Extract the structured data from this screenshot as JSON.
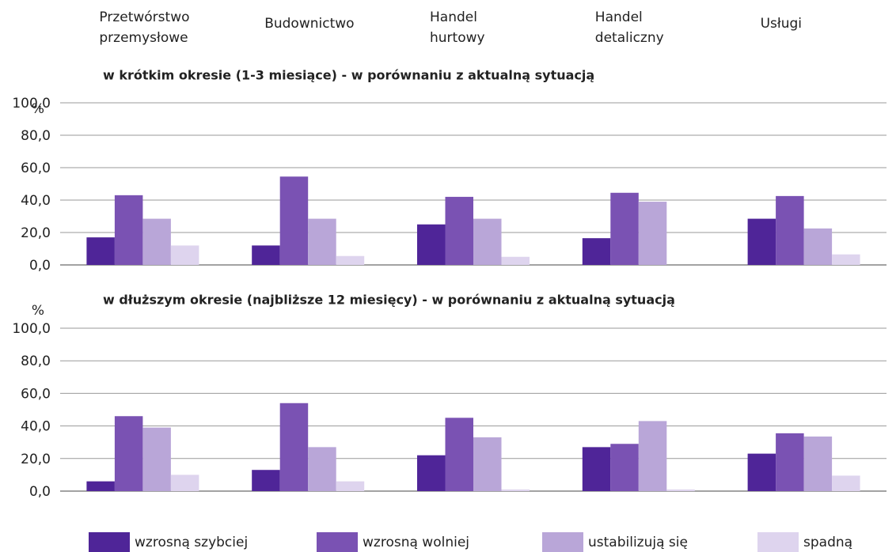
{
  "chart_data": [
    {
      "type": "bar",
      "title": "w krótkim okresie (1-3 miesiące) - w porównaniu z aktualną sytuacją",
      "ylabel": "%",
      "categories": [
        "Przetwórstwo\nprzemysłowe",
        "Budownictwo",
        "Handel\nhurtowy",
        "Handel\ndetaliczny",
        "Usługi"
      ],
      "series": [
        {
          "name": "wzrosną szybciej",
          "color": "#4f2598",
          "values": [
            17,
            12,
            25,
            16.5,
            28.5
          ]
        },
        {
          "name": "wzrosną wolniej",
          "color": "#7a52b3",
          "values": [
            43,
            54.5,
            42,
            44.5,
            42.5
          ]
        },
        {
          "name": "ustabilizują się",
          "color": "#b9a6d8",
          "values": [
            28.5,
            28.5,
            28.5,
            39,
            22.5
          ]
        },
        {
          "name": "spadną",
          "color": "#ded4ee",
          "values": [
            12,
            5.5,
            5,
            0,
            6.5
          ]
        }
      ],
      "ylim": [
        0,
        100
      ],
      "yticks": [
        {
          "value": 0,
          "label": "0,0"
        },
        {
          "value": 20,
          "label": "20,0"
        },
        {
          "value": 40,
          "label": "40,0"
        },
        {
          "value": 60,
          "label": "60,0"
        },
        {
          "value": 80,
          "label": "80,0"
        },
        {
          "value": 100,
          "label": "100,0"
        }
      ],
      "grid": true
    },
    {
      "type": "bar",
      "title": "w dłuższym okresie (najbliższe 12 miesięcy) - w porównaniu z aktualną sytuacją",
      "ylabel": "%",
      "series": [
        {
          "color": "#4f2598",
          "values": [
            6,
            13,
            22,
            27,
            23
          ]
        },
        {
          "color": "#7a52b3",
          "values": [
            46,
            54,
            45,
            29,
            35.5
          ]
        },
        {
          "color": "#b9a6d8",
          "values": [
            39,
            27,
            33,
            43,
            33.5
          ]
        },
        {
          "color": "#ded4ee",
          "values": [
            10,
            6,
            1,
            1,
            9.5
          ]
        }
      ],
      "ylim": [
        0,
        100
      ],
      "yticks": [
        {
          "value": 0,
          "label": "0,0"
        },
        {
          "value": 20,
          "label": "20,0"
        },
        {
          "value": 40,
          "label": "40,0"
        },
        {
          "value": 60,
          "label": "60,0"
        },
        {
          "value": 80,
          "label": "80,0"
        },
        {
          "value": 100,
          "label": "100,0"
        }
      ],
      "grid": true
    }
  ]
}
